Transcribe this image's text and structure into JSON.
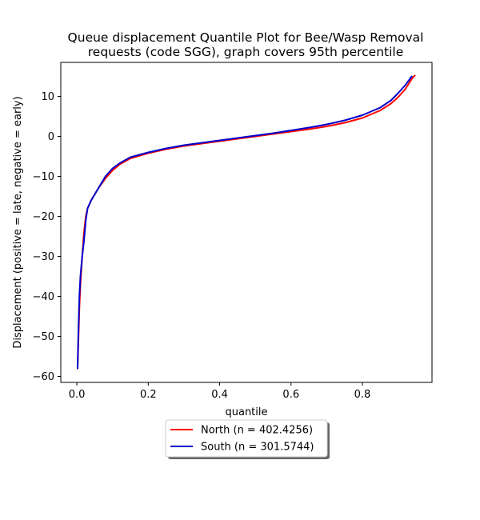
{
  "chart_data": {
    "type": "line",
    "title": [
      "Queue displacement Quantile Plot for Bee/Wasp Removal",
      "requests (code SGG), graph covers 95th percentile"
    ],
    "xlabel": "quantile",
    "ylabel": "Displacement (positive = late, negative = early)",
    "xlim": [
      -0.045,
      0.995
    ],
    "ylim": [
      -61.5,
      18.5
    ],
    "xticks": [
      0.0,
      0.2,
      0.4,
      0.6,
      0.8
    ],
    "xtick_labels": [
      "0.0",
      "0.2",
      "0.4",
      "0.6",
      "0.8"
    ],
    "yticks": [
      10,
      0,
      -10,
      -20,
      -30,
      -40,
      -50,
      -60
    ],
    "ytick_labels": [
      "10",
      "0",
      "−10",
      "−20",
      "−30",
      "−40",
      "−50",
      "−60"
    ],
    "grid": false,
    "legend_position": "below",
    "series": [
      {
        "name": "North (n = 402.4256)",
        "color": "#ff0000",
        "x": [
          0.002,
          0.004,
          0.007,
          0.01,
          0.015,
          0.02,
          0.025,
          0.03,
          0.04,
          0.05,
          0.06,
          0.08,
          0.1,
          0.12,
          0.15,
          0.2,
          0.25,
          0.3,
          0.35,
          0.4,
          0.45,
          0.5,
          0.55,
          0.6,
          0.65,
          0.7,
          0.75,
          0.8,
          0.85,
          0.88,
          0.9,
          0.92,
          0.93,
          0.94,
          0.947
        ],
        "y": [
          -58,
          -52,
          -43,
          -37,
          -30,
          -24,
          -20,
          -18,
          -16,
          -14.5,
          -13,
          -10.5,
          -8.5,
          -7,
          -5.5,
          -4.2,
          -3.2,
          -2.4,
          -1.8,
          -1.2,
          -0.6,
          0,
          0.6,
          1.2,
          1.8,
          2.5,
          3.4,
          4.6,
          6.5,
          8.2,
          9.8,
          11.8,
          13.2,
          14.6,
          15.2
        ]
      },
      {
        "name": "South (n = 301.5744)",
        "color": "#0000cc",
        "x": [
          0.002,
          0.004,
          0.007,
          0.01,
          0.015,
          0.02,
          0.025,
          0.03,
          0.04,
          0.05,
          0.06,
          0.08,
          0.1,
          0.12,
          0.15,
          0.2,
          0.25,
          0.3,
          0.35,
          0.4,
          0.45,
          0.5,
          0.55,
          0.6,
          0.65,
          0.7,
          0.75,
          0.8,
          0.85,
          0.88,
          0.9,
          0.92,
          0.93,
          0.938
        ],
        "y": [
          -58,
          -50,
          -40,
          -35,
          -30,
          -26,
          -21,
          -18,
          -16,
          -14.5,
          -13,
          -10,
          -8,
          -6.7,
          -5.2,
          -4,
          -3,
          -2.2,
          -1.6,
          -1,
          -0.4,
          0.2,
          0.8,
          1.5,
          2.2,
          3,
          4,
          5.3,
          7.2,
          9,
          10.8,
          12.8,
          14,
          15
        ]
      }
    ]
  }
}
